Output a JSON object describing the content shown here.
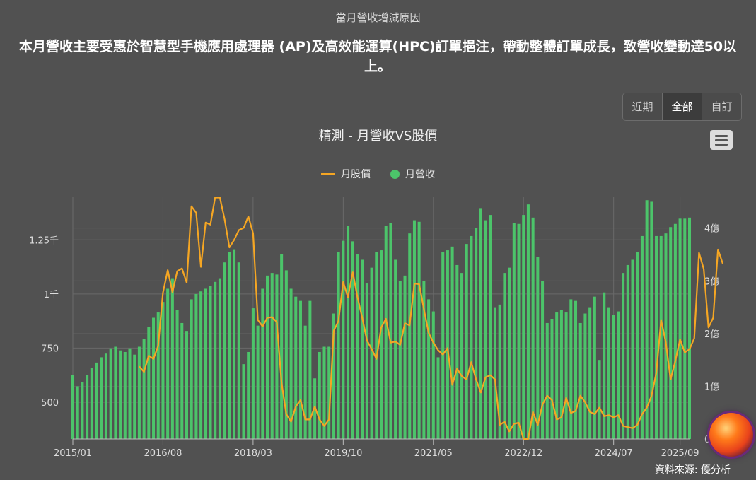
{
  "section_title": "當月營收增減原因",
  "headline": "本月營收主要受惠於智慧型手機應用處理器 (AP)及高效能運算(HPC)訂單挹注，帶動整體訂單成長，致營收變動達50以上。",
  "range_buttons": [
    {
      "label": "近期",
      "active": false
    },
    {
      "label": "全部",
      "active": true
    },
    {
      "label": "自訂",
      "active": false
    }
  ],
  "source": "資料來源: 優分析",
  "colors": {
    "price": "#f5a623",
    "revenue": "#4cc46a",
    "background": "#515151",
    "grid": "#6a6a6a"
  },
  "chart_data": {
    "type": "bar+line",
    "title": "精測 - 月營收VS股價",
    "legend": [
      "月股價",
      "月營收"
    ],
    "legend_position": "top-center",
    "x_tick_labels": [
      "2015/01",
      "2016/08",
      "2018/03",
      "2019/10",
      "2021/05",
      "2022/12",
      "2024/07",
      "2025/09"
    ],
    "x_tick_months": [
      0,
      19,
      38,
      57,
      76,
      95,
      114,
      128
    ],
    "y_left": {
      "label": "",
      "ticks": [
        500,
        750,
        1000,
        1250
      ],
      "tick_labels": [
        "500",
        "750",
        "1千",
        "1.25千"
      ],
      "range": [
        330,
        1450
      ]
    },
    "y_right": {
      "label": "",
      "ticks": [
        0,
        1,
        2,
        3,
        4
      ],
      "tick_labels": [
        "0",
        "1億",
        "2億",
        "3億",
        "4億"
      ],
      "range": [
        0,
        4.6
      ]
    },
    "grid": true,
    "series": [
      {
        "name": "月營收",
        "type": "bar",
        "axis": "right",
        "unit": "億",
        "start": "2015/01",
        "values": [
          1.22,
          1.0,
          1.08,
          1.22,
          1.35,
          1.45,
          1.55,
          1.62,
          1.72,
          1.75,
          1.68,
          1.65,
          1.72,
          1.6,
          1.75,
          1.9,
          2.12,
          2.3,
          2.4,
          2.6,
          2.85,
          3.05,
          2.45,
          2.2,
          2.05,
          2.65,
          2.75,
          2.8,
          2.85,
          2.9,
          2.98,
          3.05,
          3.35,
          3.55,
          3.6,
          3.35,
          1.42,
          1.65,
          2.48,
          2.15,
          2.85,
          3.1,
          3.15,
          3.12,
          3.5,
          3.2,
          2.85,
          2.7,
          2.62,
          2.15,
          2.62,
          1.15,
          1.65,
          1.75,
          1.75,
          2.38,
          3.55,
          3.76,
          4.05,
          3.75,
          3.5,
          3.4,
          2.95,
          3.25,
          3.55,
          3.58,
          4.05,
          4.1,
          3.4,
          3.0,
          3.1,
          3.9,
          4.15,
          4.12,
          3.0,
          2.65,
          2.42,
          1.55,
          3.55,
          3.58,
          3.65,
          3.3,
          3.15,
          3.7,
          3.85,
          4.0,
          4.38,
          4.15,
          4.25,
          2.5,
          2.55,
          3.15,
          3.25,
          4.1,
          4.08,
          4.25,
          4.45,
          4.2,
          3.45,
          3.0,
          2.2,
          2.28,
          2.4,
          2.45,
          2.4,
          2.65,
          2.62,
          2.2,
          2.38,
          2.5,
          2.7,
          1.5,
          2.78,
          2.5,
          2.35,
          2.42,
          3.15,
          3.3,
          3.4,
          3.55,
          3.85,
          4.53,
          4.5,
          3.85,
          3.85,
          3.9,
          4.02,
          4.08,
          4.18,
          4.18,
          4.2
        ],
        "color": "#4cc46a"
      },
      {
        "name": "月股價",
        "type": "line",
        "axis": "left",
        "start_month_index": 14,
        "values": [
          665,
          640,
          715,
          700,
          760,
          1005,
          1110,
          1008,
          1105,
          1118,
          1052,
          1405,
          1375,
          1125,
          1330,
          1320,
          1445,
          1445,
          1345,
          1215,
          1250,
          1295,
          1305,
          1358,
          1280,
          880,
          850,
          890,
          893,
          870,
          590,
          445,
          410,
          480,
          510,
          420,
          420,
          480,
          420,
          390,
          420,
          830,
          875,
          1055,
          985,
          1100,
          985,
          890,
          785,
          745,
          700,
          845,
          885,
          775,
          780,
          765,
          865,
          855,
          1048,
          1045,
          930,
          820,
          775,
          740,
          720,
          750,
          580,
          655,
          620,
          605,
          685,
          605,
          545,
          615,
          625,
          605,
          395,
          410,
          365,
          400,
          405,
          330,
          330,
          455,
          395,
          490,
          530,
          510,
          420,
          430,
          520,
          450,
          460,
          530,
          500,
          455,
          445,
          475,
          435,
          440,
          430,
          440,
          390,
          385,
          380,
          395,
          445,
          475,
          530,
          635,
          880,
          775,
          605,
          690,
          790,
          730,
          745,
          795,
          1190,
          1115,
          845,
          890,
          1205,
          1140
        ],
        "color": "#f5a623"
      }
    ]
  }
}
